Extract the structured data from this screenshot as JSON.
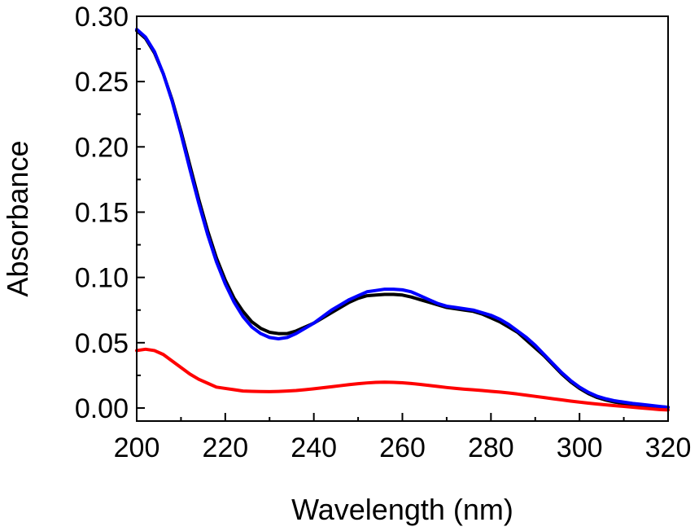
{
  "chart_data": {
    "type": "line",
    "title": "",
    "xlabel": "Wavelength (nm)",
    "ylabel": "Absorbance",
    "xlim": [
      200,
      320
    ],
    "ylim": [
      -0.01,
      0.3
    ],
    "x_ticks": [
      200,
      220,
      240,
      260,
      280,
      300,
      320
    ],
    "x_tick_labels": [
      "200",
      "220",
      "240",
      "260",
      "280",
      "300",
      "320"
    ],
    "y_ticks": [
      0.0,
      0.05,
      0.1,
      0.15,
      0.2,
      0.25,
      0.3
    ],
    "y_tick_labels": [
      "0.00",
      "0.05",
      "0.10",
      "0.15",
      "0.20",
      "0.25",
      "0.30"
    ],
    "grid": false,
    "legend": null,
    "series": [
      {
        "name": "black",
        "color": "#000000",
        "x": [
          200,
          202,
          204,
          206,
          208,
          210,
          212,
          214,
          216,
          218,
          220,
          222,
          224,
          226,
          228,
          230,
          232,
          234,
          236,
          238,
          240,
          242,
          244,
          246,
          248,
          250,
          252,
          254,
          256,
          258,
          260,
          262,
          264,
          266,
          268,
          270,
          272,
          274,
          276,
          278,
          280,
          282,
          284,
          286,
          288,
          290,
          292,
          294,
          296,
          298,
          300,
          302,
          304,
          306,
          308,
          310,
          312,
          314,
          316,
          318,
          320
        ],
        "y": [
          0.289,
          0.283,
          0.272,
          0.256,
          0.236,
          0.212,
          0.186,
          0.16,
          0.136,
          0.115,
          0.098,
          0.084,
          0.074,
          0.066,
          0.061,
          0.058,
          0.057,
          0.057,
          0.059,
          0.062,
          0.065,
          0.069,
          0.073,
          0.077,
          0.081,
          0.084,
          0.086,
          0.0865,
          0.087,
          0.087,
          0.0865,
          0.085,
          0.083,
          0.081,
          0.079,
          0.077,
          0.076,
          0.075,
          0.074,
          0.072,
          0.069,
          0.066,
          0.062,
          0.058,
          0.052,
          0.046,
          0.04,
          0.033,
          0.026,
          0.02,
          0.015,
          0.011,
          0.008,
          0.006,
          0.0045,
          0.0035,
          0.0028,
          0.0022,
          0.0016,
          0.001,
          0.0005
        ]
      },
      {
        "name": "blue",
        "color": "#0000ff",
        "x": [
          200,
          202,
          204,
          206,
          208,
          210,
          212,
          214,
          216,
          218,
          220,
          222,
          224,
          226,
          228,
          230,
          232,
          234,
          236,
          238,
          240,
          242,
          244,
          246,
          248,
          250,
          252,
          254,
          256,
          258,
          260,
          262,
          264,
          266,
          268,
          270,
          272,
          274,
          276,
          278,
          280,
          282,
          284,
          286,
          288,
          290,
          292,
          294,
          296,
          298,
          300,
          302,
          304,
          306,
          308,
          310,
          312,
          314,
          316,
          318,
          320
        ],
        "y": [
          0.29,
          0.284,
          0.273,
          0.256,
          0.235,
          0.21,
          0.183,
          0.157,
          0.133,
          0.112,
          0.095,
          0.081,
          0.07,
          0.062,
          0.057,
          0.054,
          0.053,
          0.054,
          0.057,
          0.061,
          0.065,
          0.07,
          0.075,
          0.079,
          0.083,
          0.086,
          0.089,
          0.09,
          0.091,
          0.091,
          0.0905,
          0.089,
          0.086,
          0.083,
          0.08,
          0.078,
          0.077,
          0.076,
          0.075,
          0.073,
          0.071,
          0.068,
          0.064,
          0.059,
          0.054,
          0.048,
          0.041,
          0.034,
          0.027,
          0.021,
          0.016,
          0.012,
          0.009,
          0.007,
          0.0055,
          0.0045,
          0.0035,
          0.0028,
          0.002,
          0.0012,
          0.0005
        ]
      },
      {
        "name": "red",
        "color": "#ff0000",
        "x": [
          200,
          202,
          204,
          206,
          208,
          210,
          212,
          214,
          216,
          218,
          220,
          222,
          224,
          226,
          228,
          230,
          232,
          234,
          236,
          238,
          240,
          242,
          244,
          246,
          248,
          250,
          252,
          254,
          256,
          258,
          260,
          262,
          264,
          266,
          268,
          270,
          272,
          274,
          276,
          278,
          280,
          282,
          284,
          286,
          288,
          290,
          292,
          294,
          296,
          298,
          300,
          302,
          304,
          306,
          308,
          310,
          312,
          314,
          316,
          318,
          320
        ],
        "y": [
          0.044,
          0.045,
          0.044,
          0.041,
          0.036,
          0.031,
          0.026,
          0.022,
          0.019,
          0.016,
          0.015,
          0.014,
          0.013,
          0.0128,
          0.0126,
          0.0125,
          0.0127,
          0.013,
          0.0134,
          0.014,
          0.0147,
          0.0155,
          0.0163,
          0.0171,
          0.0179,
          0.0186,
          0.0192,
          0.0196,
          0.0198,
          0.0196,
          0.0193,
          0.0188,
          0.0181,
          0.0173,
          0.0165,
          0.0157,
          0.015,
          0.0144,
          0.0139,
          0.0134,
          0.0128,
          0.0122,
          0.0115,
          0.0107,
          0.0098,
          0.0089,
          0.008,
          0.0071,
          0.0062,
          0.0053,
          0.0045,
          0.0037,
          0.003,
          0.0024,
          0.0018,
          0.0012,
          0.0006,
          0.0,
          -0.0006,
          -0.0012,
          -0.0015
        ]
      }
    ]
  }
}
